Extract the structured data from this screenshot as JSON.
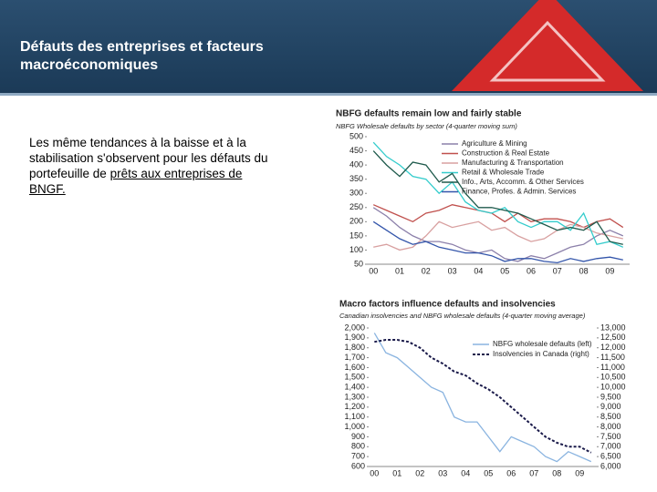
{
  "slide": {
    "title": "Défauts des entreprises et facteurs macroéconomiques",
    "body": [
      "Les même tendances à la baisse et à la stabilisation s'observent pour les défauts du portefeuille de ",
      "prêts aux entreprises de BNGF."
    ]
  },
  "chart_data": [
    {
      "type": "line",
      "title": "NBFG defaults remain low and fairly stable",
      "subtitle": "NBFG Wholesale defaults by sector (4-quarter moving sum)",
      "categories": [
        "00",
        null,
        "01",
        null,
        "02",
        null,
        "03",
        null,
        "04",
        null,
        "05",
        null,
        "06",
        null,
        "07",
        null,
        "08",
        null,
        "09",
        null
      ],
      "ylim": [
        50,
        500
      ],
      "yticks": [
        50,
        100,
        150,
        200,
        250,
        300,
        350,
        400,
        450,
        500
      ],
      "series": [
        {
          "name": "Agriculture & Mining",
          "color": "#8c80aa",
          "values": [
            250,
            220,
            180,
            150,
            130,
            130,
            120,
            100,
            90,
            100,
            70,
            60,
            80,
            70,
            90,
            110,
            120,
            150,
            170,
            150
          ]
        },
        {
          "name": "Construction & Real Estate",
          "color": "#c0504d",
          "values": [
            260,
            240,
            220,
            200,
            230,
            240,
            260,
            250,
            240,
            230,
            200,
            230,
            200,
            210,
            210,
            200,
            180,
            200,
            210,
            180
          ]
        },
        {
          "name": "Manufacturing & Transportation",
          "color": "#d8a0a0",
          "values": [
            110,
            120,
            100,
            110,
            150,
            200,
            180,
            190,
            200,
            170,
            180,
            150,
            130,
            140,
            170,
            190,
            180,
            160,
            150,
            140
          ]
        },
        {
          "name": "Retail & Wholesale Trade",
          "color": "#33cccc",
          "values": [
            480,
            430,
            400,
            360,
            350,
            300,
            340,
            270,
            240,
            230,
            250,
            200,
            180,
            200,
            200,
            170,
            230,
            120,
            130,
            110
          ]
        },
        {
          "name": "Info., Arts, Accomm. & Other Services",
          "color": "#1f5a4c",
          "values": [
            450,
            400,
            360,
            410,
            400,
            340,
            370,
            300,
            250,
            250,
            240,
            230,
            210,
            190,
            170,
            180,
            170,
            200,
            130,
            120
          ]
        },
        {
          "name": "Finance, Profes. & Admin. Services",
          "color": "#3355aa",
          "values": [
            200,
            170,
            140,
            120,
            130,
            110,
            100,
            90,
            90,
            80,
            60,
            70,
            70,
            60,
            55,
            70,
            60,
            70,
            75,
            65
          ]
        }
      ]
    },
    {
      "type": "line",
      "title": "Macro factors influence defaults and insolvencies",
      "subtitle": "Canadian insolvencies and NBFG wholesale defaults (4-quarter moving average)",
      "categories": [
        "00",
        null,
        "01",
        null,
        "02",
        null,
        "03",
        null,
        "04",
        null,
        "05",
        null,
        "06",
        null,
        "07",
        null,
        "08",
        null,
        "09",
        null
      ],
      "ylim": [
        600,
        2000
      ],
      "yticks": [
        600,
        700,
        800,
        900,
        {
          "value": 1000,
          "label": "1,000"
        },
        {
          "value": 1100,
          "label": "1,100"
        },
        {
          "value": 1200,
          "label": "1,200"
        },
        {
          "value": 1300,
          "label": "1,300"
        },
        {
          "value": 1400,
          "label": "1,400"
        },
        {
          "value": 1500,
          "label": "1,500"
        },
        {
          "value": 1600,
          "label": "1,600"
        },
        {
          "value": 1700,
          "label": "1,700"
        },
        {
          "value": 1800,
          "label": "1,800"
        },
        {
          "value": 1900,
          "label": "1,900"
        },
        {
          "value": 2000,
          "label": "2,000"
        }
      ],
      "y2lim": [
        6000,
        13000
      ],
      "y2ticks": [
        {
          "value": 6000,
          "label": "6,000"
        },
        {
          "value": 6500,
          "label": "6,500"
        },
        {
          "value": 7000,
          "label": "7,000"
        },
        {
          "value": 7500,
          "label": "7,500"
        },
        {
          "value": 8000,
          "label": "8,000"
        },
        {
          "value": 8500,
          "label": "8,500"
        },
        {
          "value": 9000,
          "label": "9,000"
        },
        {
          "value": 9500,
          "label": "9,500"
        },
        {
          "value": 10000,
          "label": "10,000"
        },
        {
          "value": 10500,
          "label": "10,500"
        },
        {
          "value": 11000,
          "label": "11,000"
        },
        {
          "value": 11500,
          "label": "11,500"
        },
        {
          "value": 12000,
          "label": "12,000"
        },
        {
          "value": 12500,
          "label": "12,500"
        },
        {
          "value": 13000,
          "label": "13,000"
        }
      ],
      "series": [
        {
          "name": "NBFG wholesale defaults (left)",
          "color": "#8ab4e0",
          "values": [
            1950,
            1750,
            1700,
            1600,
            1500,
            1400,
            1350,
            1100,
            1050,
            1050,
            900,
            750,
            900,
            850,
            800,
            700,
            650,
            750,
            700,
            650
          ]
        },
        {
          "name": "Insolvencies in Canada (right)",
          "color": "#1a1a4a",
          "dash": true,
          "axis": "y2",
          "values": [
            12300,
            12400,
            12400,
            12300,
            12000,
            11500,
            11200,
            10800,
            10600,
            10200,
            9900,
            9500,
            9000,
            8500,
            8000,
            7500,
            7200,
            7000,
            7000,
            6700
          ]
        }
      ]
    }
  ]
}
